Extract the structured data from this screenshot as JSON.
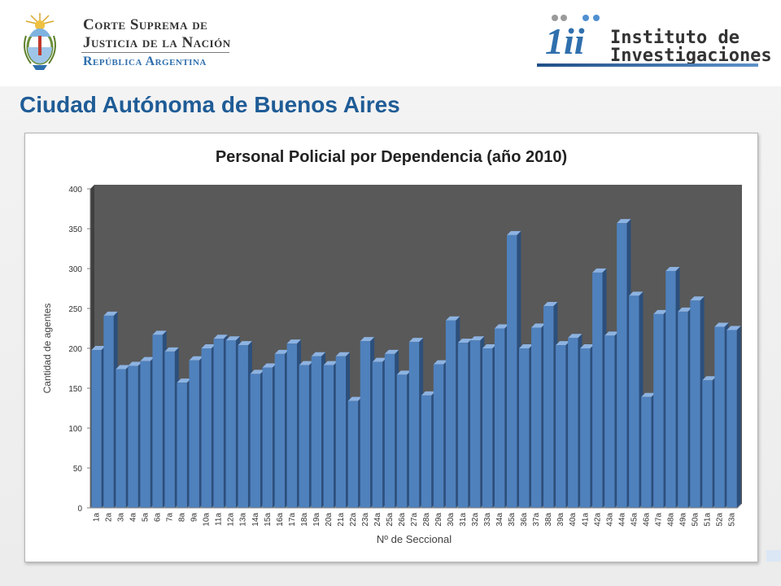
{
  "header": {
    "court_logo": {
      "line1": "Corte Suprema de",
      "line2": "Justicia de la Nación",
      "line3": "República Argentina",
      "emblem_icon": "argentina-coat-of-arms-icon",
      "colors": {
        "text": "#333333",
        "accent": "#2f6fad"
      }
    },
    "institute_logo": {
      "mark_text": "1ii",
      "line1": "Instituto de",
      "line2": "Investigaciones",
      "colors": {
        "mark": "#2f6fad",
        "bar": "#1f4f86"
      }
    }
  },
  "page": {
    "title": "Ciudad Autónoma de Buenos Aires",
    "title_color": "#1f5c96"
  },
  "chart_data": {
    "type": "bar",
    "title": "Personal Policial por Dependencia (año 2010)",
    "xlabel": "Nº de Seccional",
    "ylabel": "Cantidad de agentes",
    "ylim": [
      0,
      400
    ],
    "yticks": [
      0,
      50,
      100,
      150,
      200,
      250,
      300,
      350,
      400
    ],
    "grid": false,
    "style": "3d-column",
    "colors": {
      "bar": "#4f81bd",
      "bar_side": "#2c4f7c",
      "bar_top": "#8db3e2",
      "plot_bg": "#595959"
    },
    "categories": [
      "1a",
      "2a",
      "3a",
      "4a",
      "5a",
      "6a",
      "7a",
      "8a",
      "9a",
      "10a",
      "11a",
      "12a",
      "13a",
      "14a",
      "15a",
      "16a",
      "17a",
      "18a",
      "19a",
      "20a",
      "21a",
      "22a",
      "23a",
      "24a",
      "25a",
      "26a",
      "27a",
      "28a",
      "29a",
      "30a",
      "31a",
      "32a",
      "33a",
      "34a",
      "35a",
      "36a",
      "37a",
      "38a",
      "39a",
      "40a",
      "41a",
      "42a",
      "43a",
      "44a",
      "45a",
      "46a",
      "47a",
      "48a",
      "49a",
      "50a",
      "51a",
      "52a",
      "53a"
    ],
    "values": [
      198,
      241,
      174,
      178,
      184,
      217,
      196,
      157,
      185,
      200,
      212,
      210,
      204,
      168,
      176,
      193,
      206,
      179,
      190,
      179,
      190,
      134,
      209,
      183,
      193,
      167,
      208,
      141,
      180,
      235,
      207,
      210,
      200,
      225,
      342,
      200,
      226,
      253,
      204,
      213,
      200,
      295,
      216,
      357,
      266,
      139,
      243,
      297,
      246,
      260,
      160,
      227,
      223
    ]
  }
}
